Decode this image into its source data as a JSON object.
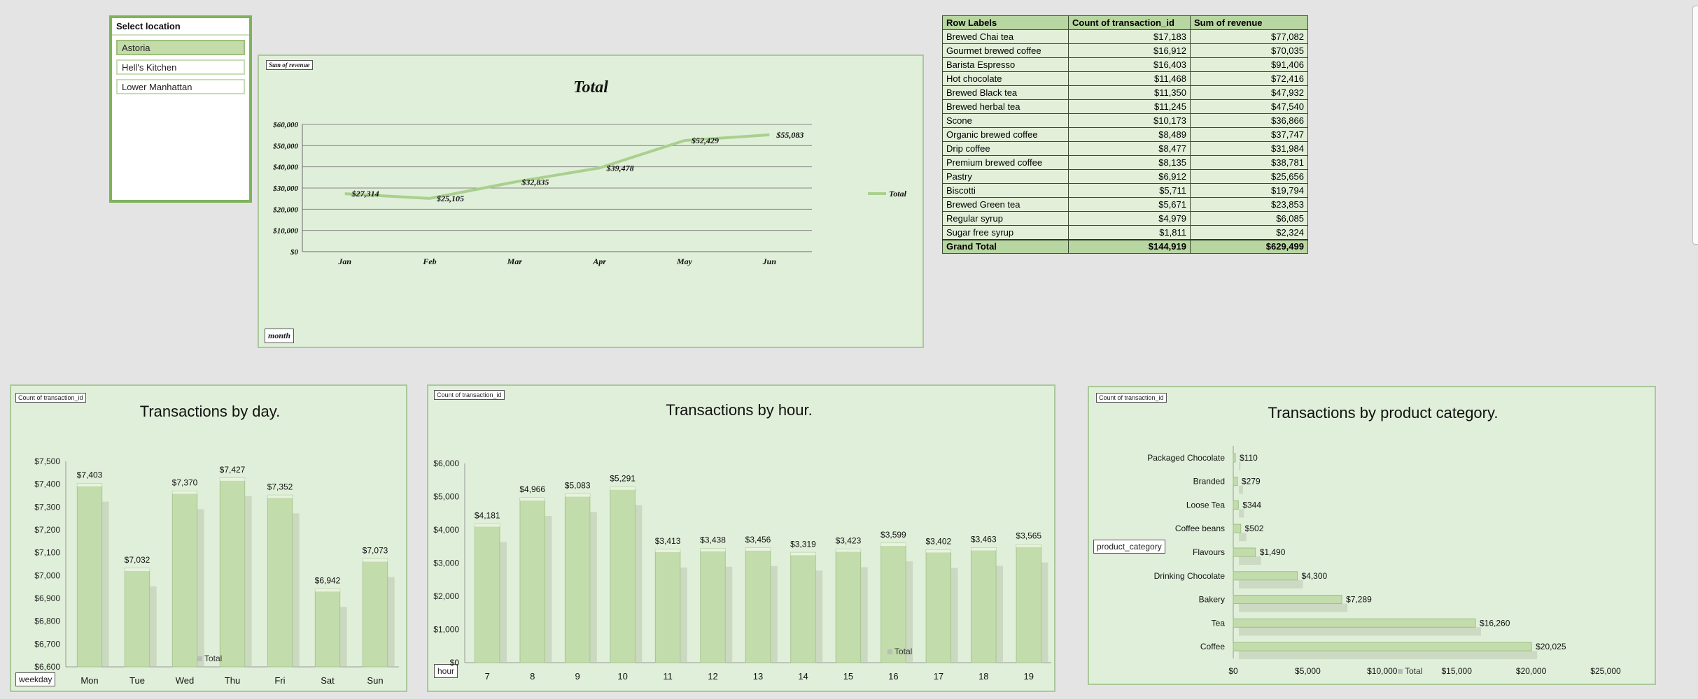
{
  "slicer": {
    "title": "Select location",
    "items": [
      "Astoria",
      "Hell's Kitchen",
      "Lower Manhattan"
    ],
    "selected": "Astoria"
  },
  "line_chart": {
    "field_tag": "Sum of revenue",
    "axis_tag": "month",
    "chart_data": {
      "type": "line",
      "title": "Total",
      "categories": [
        "Jan",
        "Feb",
        "Mar",
        "Apr",
        "May",
        "Jun"
      ],
      "series": [
        {
          "name": "Total",
          "values": [
            27314,
            25105,
            32835,
            39478,
            52429,
            55083
          ]
        }
      ],
      "data_labels": [
        "$27,314",
        "$25,105",
        "$32,835",
        "$39,478",
        "$52,429",
        "$55,083"
      ],
      "y_ticks": [
        "$0",
        "$10,000",
        "$20,000",
        "$30,000",
        "$40,000",
        "$50,000",
        "$60,000"
      ],
      "ylim": [
        0,
        60000
      ],
      "grid": true,
      "legend": "right"
    }
  },
  "pivot": {
    "headers": [
      "Row Labels",
      "Count of transaction_id",
      "Sum of revenue"
    ],
    "rows": [
      [
        "Brewed Chai tea",
        "$17,183",
        "$77,082"
      ],
      [
        "Gourmet brewed coffee",
        "$16,912",
        "$70,035"
      ],
      [
        "Barista Espresso",
        "$16,403",
        "$91,406"
      ],
      [
        "Hot chocolate",
        "$11,468",
        "$72,416"
      ],
      [
        "Brewed Black tea",
        "$11,350",
        "$47,932"
      ],
      [
        "Brewed herbal tea",
        "$11,245",
        "$47,540"
      ],
      [
        "Scone",
        "$10,173",
        "$36,866"
      ],
      [
        "Organic brewed coffee",
        "$8,489",
        "$37,747"
      ],
      [
        "Drip coffee",
        "$8,477",
        "$31,984"
      ],
      [
        "Premium brewed coffee",
        "$8,135",
        "$38,781"
      ],
      [
        "Pastry",
        "$6,912",
        "$25,656"
      ],
      [
        "Biscotti",
        "$5,711",
        "$19,794"
      ],
      [
        "Brewed Green tea",
        "$5,671",
        "$23,853"
      ],
      [
        "Regular syrup",
        "$4,979",
        "$6,085"
      ],
      [
        "Sugar free syrup",
        "$1,811",
        "$2,324"
      ]
    ],
    "total": [
      "Grand Total",
      "$144,919",
      "$629,499"
    ]
  },
  "day_chart": {
    "field_tag": "Count of transaction_id",
    "axis_tag": "weekday",
    "legend": "Total",
    "chart_data": {
      "type": "bar",
      "title": "Transactions by day.",
      "categories": [
        "Mon",
        "Tue",
        "Wed",
        "Thu",
        "Fri",
        "Sat",
        "Sun"
      ],
      "series": [
        {
          "name": "Total",
          "values": [
            7403,
            7032,
            7370,
            7427,
            7352,
            6942,
            7073
          ]
        }
      ],
      "data_labels": [
        "$7,403",
        "$7,032",
        "$7,370",
        "$7,427",
        "$7,352",
        "$6,942",
        "$7,073"
      ],
      "y_ticks": [
        "$6,600",
        "$6,700",
        "$6,800",
        "$6,900",
        "$7,000",
        "$7,100",
        "$7,200",
        "$7,300",
        "$7,400",
        "$7,500"
      ],
      "ylim": [
        6600,
        7500
      ]
    }
  },
  "hour_chart": {
    "field_tag": "Count of transaction_id",
    "axis_tag": "hour",
    "legend": "Total",
    "chart_data": {
      "type": "bar",
      "title": "Transactions by hour.",
      "categories": [
        "7",
        "8",
        "9",
        "10",
        "11",
        "12",
        "13",
        "14",
        "15",
        "16",
        "17",
        "18",
        "19"
      ],
      "series": [
        {
          "name": "Total",
          "values": [
            4181,
            4966,
            5083,
            5291,
            3413,
            3438,
            3456,
            3319,
            3423,
            3599,
            3402,
            3463,
            3565
          ]
        }
      ],
      "data_labels": [
        "$4,181",
        "$4,966",
        "$5,083",
        "$5,291",
        "$3,413",
        "$3,438",
        "$3,456",
        "$3,319",
        "$3,423",
        "$3,599",
        "$3,402",
        "$3,463",
        "$3,565"
      ],
      "y_ticks": [
        "$0",
        "$1,000",
        "$2,000",
        "$3,000",
        "$4,000",
        "$5,000",
        "$6,000"
      ],
      "ylim": [
        0,
        6000
      ]
    }
  },
  "category_chart": {
    "field_tag": "Count of transaction_id",
    "axis_tag": "product_category",
    "legend": "Total",
    "chart_data": {
      "type": "bar",
      "orientation": "horizontal",
      "title": "Transactions by product category.",
      "categories": [
        "Packaged Chocolate",
        "Branded",
        "Loose Tea",
        "Coffee beans",
        "Flavours",
        "Drinking Chocolate",
        "Bakery",
        "Tea",
        "Coffee"
      ],
      "series": [
        {
          "name": "Total",
          "values": [
            110,
            279,
            344,
            502,
            1490,
            4300,
            7289,
            16260,
            20025
          ]
        }
      ],
      "data_labels": [
        "$110",
        "$279",
        "$344",
        "$502",
        "$1,490",
        "$4,300",
        "$7,289",
        "$16,260",
        "$20,025"
      ],
      "x_ticks": [
        "$0",
        "$5,000",
        "$10,000",
        "$15,000",
        "$20,000",
        "$25,000"
      ],
      "xlim": [
        0,
        25000
      ]
    }
  },
  "colors": {
    "panel_bg": "#e0efd9",
    "bar_fill": "#c3dcab",
    "line": "#a9d08e",
    "slicer_border": "#7fb35a"
  }
}
